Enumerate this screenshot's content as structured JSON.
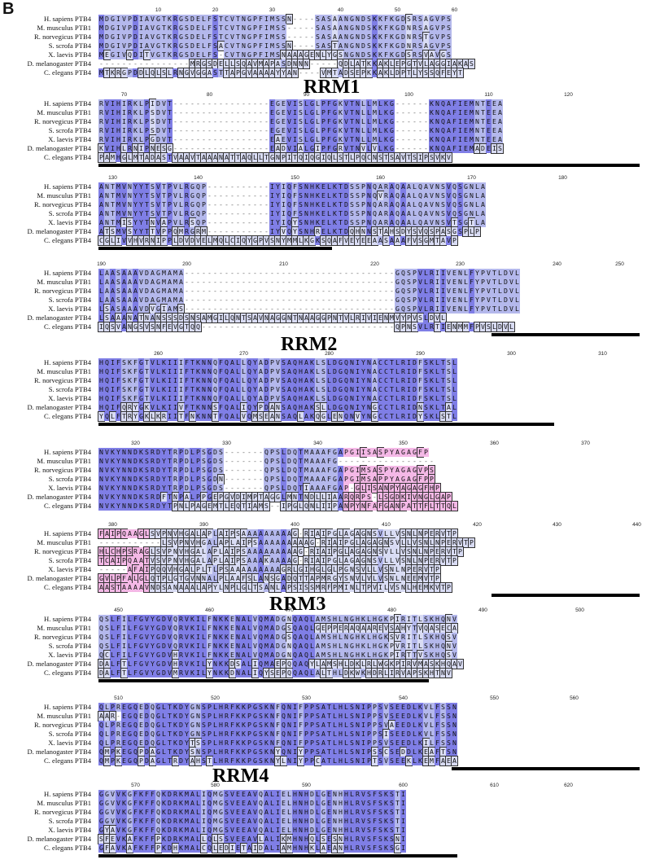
{
  "figure": {
    "panel_letter": "B",
    "residues_per_row": 95,
    "species": [
      "H. sapiens PTB4",
      "M. musculus PTB1",
      "R. norvegicus PTB4",
      "S. scrofa PTB4",
      "X. laevis PTB4",
      "D. melanogaster PTB4",
      "C. elegans PTB4"
    ],
    "colors": {
      "dark": "#7f7ee6",
      "mid": "#b4b8ec",
      "light": "#d9dcf4",
      "pink": "#f4b8e6",
      "lightpink": "#f9d6f0",
      "bar": "#000000"
    }
  },
  "blocks": [
    {
      "ticks": [
        [
          "10",
          10
        ],
        [
          "20",
          20
        ],
        [
          "30",
          30
        ],
        [
          "40",
          42
        ],
        [
          "50",
          52
        ],
        [
          "60",
          62
        ]
      ],
      "rows": [
        "MDGIVPDIAVGTKRGSDELFSTCVTNGPFIMSSN----SASAANGNDSKKFKGDSRSAGVPS",
        "MDGIVPDIAVGTKRGSDELFSTCVTNGPFIMSS-----SASAANGNDSKKFKGDNRSAGVPS",
        "MDGIVPDIAVGTKRGSDELFSTCVTNGPFIMSS-----SASAANGNDSKKFKGDNRSTGVPS",
        "MDGIVPDIAVGTKRGSDELFSACVTNGPFIMSSN----SASTANGNDSKKFKGDNRSAGVPS",
        "MEGIVQDITVGTKRGSDELFS-CVTNGPFIMSNAAAGENLYGSNGNDSKKFKGDSRSVAVGS",
        "----------------MRGSDELLSQAVMAPASDNNN-----QDLATKKAKLEPGTVLAGGIAKAS",
        "MTKRGPDDLQLSLRNGVGGASTTAPGVAAAAYYAN----VMTADSEPKKAKLDPTLYSSQFEYT"
      ],
      "bars": [],
      "domain": null
    },
    {
      "ticks": [
        [
          "70",
          4
        ],
        [
          "80",
          19
        ],
        [
          "90",
          36
        ],
        [
          "100",
          54
        ],
        [
          "110",
          68
        ],
        [
          "120",
          82
        ]
      ],
      "rows": [
        "RVIHIRKLPIDVT-----------------EGEVISLGLPFGKVTNLLMLKG------KNQAFIEMNTEEA",
        "RVIHIRKLPSDVT-----------------EGEVISLGLPFGKVTNLLMLKG------KNQAFIEMNTEEA",
        "RVIHIRKLPSDVT-----------------EGEVISLGLPFGKVTNLLMLKG------KNQAFIEMNTEEA",
        "RVIHIRKLPSDVT-----------------EGEVISLGLPFGKVTNLLMLKG------KNQAFIEMNTEEA",
        "RVIHIRKLPGDVT-----------------EAEVISLGLPFGKVTNLLMLKG------KNQAFIEMNTEEA",
        "KVIHLRNIPNESG-----------------EADVIALGIPFGRVTNVLVLKG------KNQAFIEMADEIS",
        "PAMHGLMTADASTVAAVTAAANATTAQLLTGNPITQIQGIQLSTLPQCNSTSAVTSIPSVKV"
      ],
      "bars": [
        [
          0,
          95
        ]
      ],
      "domain": {
        "label": "RRM1",
        "col": 36
      }
    },
    {
      "ticks": [
        [
          "130",
          2
        ],
        [
          "140",
          17
        ],
        [
          "150",
          34
        ],
        [
          "160",
          49
        ],
        [
          "170",
          65
        ],
        [
          "180",
          81
        ]
      ],
      "rows": [
        "ANTMVNYYTSVTPVLRGQP-----------IYIQFSNHKELKTDSSPNQARAQAALQAVNSVQSGNLA",
        "ANTMVNYYTSVTPVLRGQP-----------IYIQFSNHKELKTDSSPNQVRAQAALQAVNSVQSGNLA",
        "ANTMVNYYTSVTPVLRGQP-----------IYIQFSNHKELKTDSSPNQARAQAALQAVNSVQSGNLA",
        "ANTMVNYYTSVTPVLRGQP-----------IYIQFSNHKELKTDSSPNQARAQAALQAVNSVQSGNLA",
        "ANTMISYYTNVAPVLRSQP-----------IYIQYSNHKELKTDSSPNQARAQAALQAVNSVTSGTLA",
        "ATSMVSYYTTVPPQMRGRM-----------IYVQYSNHRELKTDQHNNSTAHSDYSVQSPASGSPLP",
        "CGLIVVHVRNIPPLDVDVELMQLCIQYGPVSNYMMLKGKSQAFVEYEEAASAAAFVSGMTAVP"
      ],
      "bars": [
        [
          0,
          41
        ]
      ],
      "domain": null
    },
    {
      "ticks": [
        [
          "190",
          0
        ],
        [
          "200",
          15
        ],
        [
          "210",
          32
        ],
        [
          "220",
          48
        ],
        [
          "230",
          63
        ],
        [
          "240",
          80
        ],
        [
          "250",
          91
        ]
      ],
      "rows": [
        "LAASAAAVDAGMAMA-------------------------------------GQSPVLRIIVENLFYPVTLDVL",
        "LAASAAAVDAGMAMA-------------------------------------GQSPVLRIIVENLFYPVTLDVL",
        "LAASAAAVDAGMAMA-------------------------------------GQSPVLRIIVENLFYPVTLDVL",
        "LAASAAAVDAGMAMA-------------------------------------GQSPVLRIIVENLFYPVTLDVL",
        "LSASAAAVDVGIAMS-------------------------------------GQSPVLRIIVENLFYPVTLDVL",
        "LSAAANATNANSSSDSNSAMGILQNTSAVNAGGNTNAAGGPNTVLRIVIENMVYPVSLDVL",
        "IQSVANGSVSNFEVGTQQ----------------------------------QPNSVLRTIENMMFPVSLDVL"
      ],
      "bars": [
        [
          69,
          95
        ]
      ],
      "domain": {
        "label": "RRM2",
        "col": 32
      }
    },
    {
      "ticks": [
        [
          "260",
          10
        ],
        [
          "270",
          25
        ],
        [
          "280",
          40
        ],
        [
          "290",
          56
        ],
        [
          "300",
          72
        ],
        [
          "310",
          88
        ]
      ],
      "rows": [
        "HQIFSKFGTVLKIIIFTKNNQFQALLQYADPVSAQHAKLSLDGQNIYNACCTLRIDFSKLTSL",
        "HQIFSKFGTVLKIIIFTKNNQFQALLQYADPVSAQHAKLSLDGQNIYNACCTLRIDFSKLTSL",
        "HQIFSKFGTVLKIIIFTKNNQFQALLQYADPVSAQHAKLSLDGQNIYNACCTLRIDFSKLTSL",
        "HQIFSKFGTVLKIIIFTKNNQFQALLQYADPVSAQHAKLSLDGQNIYNACCTLRIDFSKLTSL",
        "HQIFSKFGTVLKIIIFTKNNQFQALLQYADPVSAQHAKLSLDGQNIYNACCTLRIDFSKLTSL",
        "HQIFQRYGKVLKIIVFTKNNSFQALIQYPDANSAQHAKSLLDGQNIYNGCCTLRIDNSKLTAL",
        "YQLFTRYGKLKRIITFNKNNTFQALVQMSEANSAQLAKQGLENQNVYNGCCTLRIDYSKLSTL"
      ],
      "bars": [
        [
          0,
          80
        ]
      ],
      "domain": null
    },
    {
      "ticks": [
        [
          "320",
          6
        ],
        [
          "330",
          22
        ],
        [
          "340",
          38
        ],
        [
          "350",
          53
        ],
        [
          "360",
          69
        ],
        [
          "370",
          85
        ]
      ],
      "rows": [
        "NVKYNNDKSRDYTRPDLPSGDS-------QPSLDQTMAAAFGAPGIISASPYAGAGFP",
        "NVKYNNDKSRDYTRPDLPSGDS-------QPSLDQTMAAAFG-----------------",
        "NVKYNNDKSRDYTRPDLPSGDS-------QPSLDQTMAAAFGAPGIMSASPYAGAGVPS",
        "NVKYNNDKSRDYTRPDLPSGDN-------QPSLDQTMAAAFGAPGIMSAPPYAGAGFPP",
        "NVKYNNDKSRDYTRPDLPSGDS-------QPSLDQTIAAAFGAP-GLISANPYAGAGFHP",
        "NVKYNNDKSRDFTNPALPPGEPGVDIMPTAGGLMNTNDLLIAARQRPS-LSGDKIVNGLGAP",
        "NVKYNNDKSRDYTPNLPAGEMTLEQTIAMS--IPGLQNLIIPANPYNFAFGANPATTFLTTQL"
      ],
      "bars": [],
      "domain": null
    },
    {
      "ticks": [
        [
          "380",
          2
        ],
        [
          "390",
          18
        ],
        [
          "400",
          34
        ],
        [
          "410",
          50
        ],
        [
          "420",
          66
        ],
        [
          "430",
          80
        ],
        [
          "440",
          94
        ]
      ],
      "rows": [
        "FAIPQAAGLSVPNVHGALAPLAIPSAAAAAAAAAG-RIAIPGLAGAGNSVLLVSNLNPERVTP",
        "-----------LSVPNVHGALAPLAIPSAAAAAAAAAG-RIAIPGLAGAGNSVLLVSNLNPERVTP",
        "HLCHPSRAGLSVPNVHGALAPLAIPSAAAAAAAAAG-RIAIPGLAGAGNSVLLVSNLNPERVTP",
        "TCAIPQAATVSVPNVHGALAPLAIPSAAAKAAAAG-RIAIPGLAGAGNSVLLVSNLNPERVTP",
        "-----AFAIPQQVHGALPLTLPSAAAAAAAAAGRLGIHGLGLPGNSVLLVSNLNPERVTP",
        "GVLPFALGLQTPLGTGVNNALPLAAFSLANSGADQTTAPMRGYSNVLVLVSNLNEEMVTP",
        "AASTAAAAVNDSANAAALAPYLNPLGLTSANLAPSISSMRFPMINLTPVILVSNLHEMKVTP"
      ],
      "bars": [
        [
          69,
          95
        ]
      ],
      "domain": null
    },
    {
      "ticks": [
        [
          "450",
          3
        ],
        [
          "460",
          19
        ],
        [
          "470",
          33
        ],
        [
          "480",
          51
        ],
        [
          "490",
          67
        ],
        [
          "500",
          84
        ]
      ],
      "rows": [
        "QSLFILFGVYGDVQRVKILFNKKENALVQMADGNQAQLAMSHLNGHKLHGKPIRITLSKHQNV",
        "QSLFILFGVYGDVQRVKILFNKKENALVQMADGSQAQLGEPPERAQAAREVSAHYTVQASECA",
        "QSLFILFGVYGDVQRVKILFNKKENALVQMADGSQAQLAMSHLNGHKLHGKSVRITLSKHQSV",
        "QSLFILFGVYGDVQRVKILFNKKENALVQMADGNQAQLAMSHLNGHKLHGKPVRITLSKHQNV",
        "QCLFILFGVYGDVHRVKILFNKKENALVQMADGNQAQLAMSHLNGHKLHGKPIRTTVSKHQSV",
        "DALFTLFGVYGDVHRVKILYNKKDSALIQMAEPQQAQYLAMSHLDKLRLWGKPIRVMASKHQAV",
        "DALFTLFGVYGDVMRVKILYNKKDNALIQYSEPQQAQLALTHLDKWKHDRLIRVAPSKHTNV"
      ],
      "bars": [
        [
          0,
          58
        ]
      ],
      "domain": {
        "label": "RRM3",
        "col": 30
      }
    },
    {
      "ticks": [
        [
          "510",
          3
        ],
        [
          "520",
          20
        ],
        [
          "530",
          36
        ],
        [
          "540",
          53
        ],
        [
          "550",
          69
        ],
        [
          "560",
          83
        ]
      ],
      "rows": [
        "QLPREGQEDQGLTKDYGNSPLHRFKKPGSKNFQNIFPPSATLHLSNIPPSVSEEDLKVLFSSN",
        "AAR-EGQEDQGLTKDYGNSPLHRFKKPGSKNFQNIFPPSATLHLSNIPPSVSEEDLKVLFSSN",
        "QLPREGQEDQGLTKDYGNSPLHRFKKPGSKNFQNIFPPSATLHLSNIPPSVAEEDLKVLFSSN",
        "QLPREGQEDQGLTKDYGNSPLHRFKKPGSKNFQNIFPPSATLHLSNIPPSISEEDLKVLFSSN",
        "QLPREGQEDQGLTKDYTSSPLHRFKKPGSKNFQNIFPPSATLHLSNIPPSVSEEDLKILFSSN",
        "QMPKEGQPDAGLTKDYSNSPLHRFKKPGSKNYQNIYPPSATLHLSNIPSSCSEDDLKEAFTSN",
        "QMPKEGQPDAGLTRDYAHSTLHRFKKPGSKNYLNIYPPCATLHLSNIPTSVSEEKLKEMFAEA"
      ],
      "bars": [
        [
          62,
          95
        ]
      ],
      "domain": null
    },
    {
      "ticks": [
        [
          "570",
          6
        ],
        [
          "580",
          20
        ],
        [
          "590",
          36
        ],
        [
          "600",
          53
        ],
        [
          "610",
          69
        ],
        [
          "620",
          82
        ]
      ],
      "rows": [
        "GGVVKGFKFFQKDRKMALIQMGSVEEAVQALIELHNHDLGENHHLRVSFSKSTI",
        "GGVVKGFKFFQKDRKMALIQMGSVEEAVQALIELHNHDLGENHHLRVSFSKSTI",
        "GGVVKGFKFFQKDRKMALIQMGSVEEAVQALIELHNHDLGENHHLRVSFSKSTI",
        "GGVVKGFKFFQKDRKMALIQMGSVEEAVQALIELHNHDLGENHHLRVSFSKSTI",
        "GYAVKGFKFFQKDRKMALIQMGSVEEAVQALIELHNHDLGENHHLRVSFSKSTI",
        "SFEVKAFKFFPKDRKMALLQLSSVEEAVLALIKMHNHQLSESNHLRVSFSKSNI",
        "GFAVKAFKFFPKDHKMALCQLEDIETAIDALIAMHNHKLAEANHLRVSFSKSGI"
      ],
      "bars": [
        [
          0,
          63
        ]
      ],
      "domain": {
        "label": "RRM4",
        "col": 20
      }
    }
  ]
}
